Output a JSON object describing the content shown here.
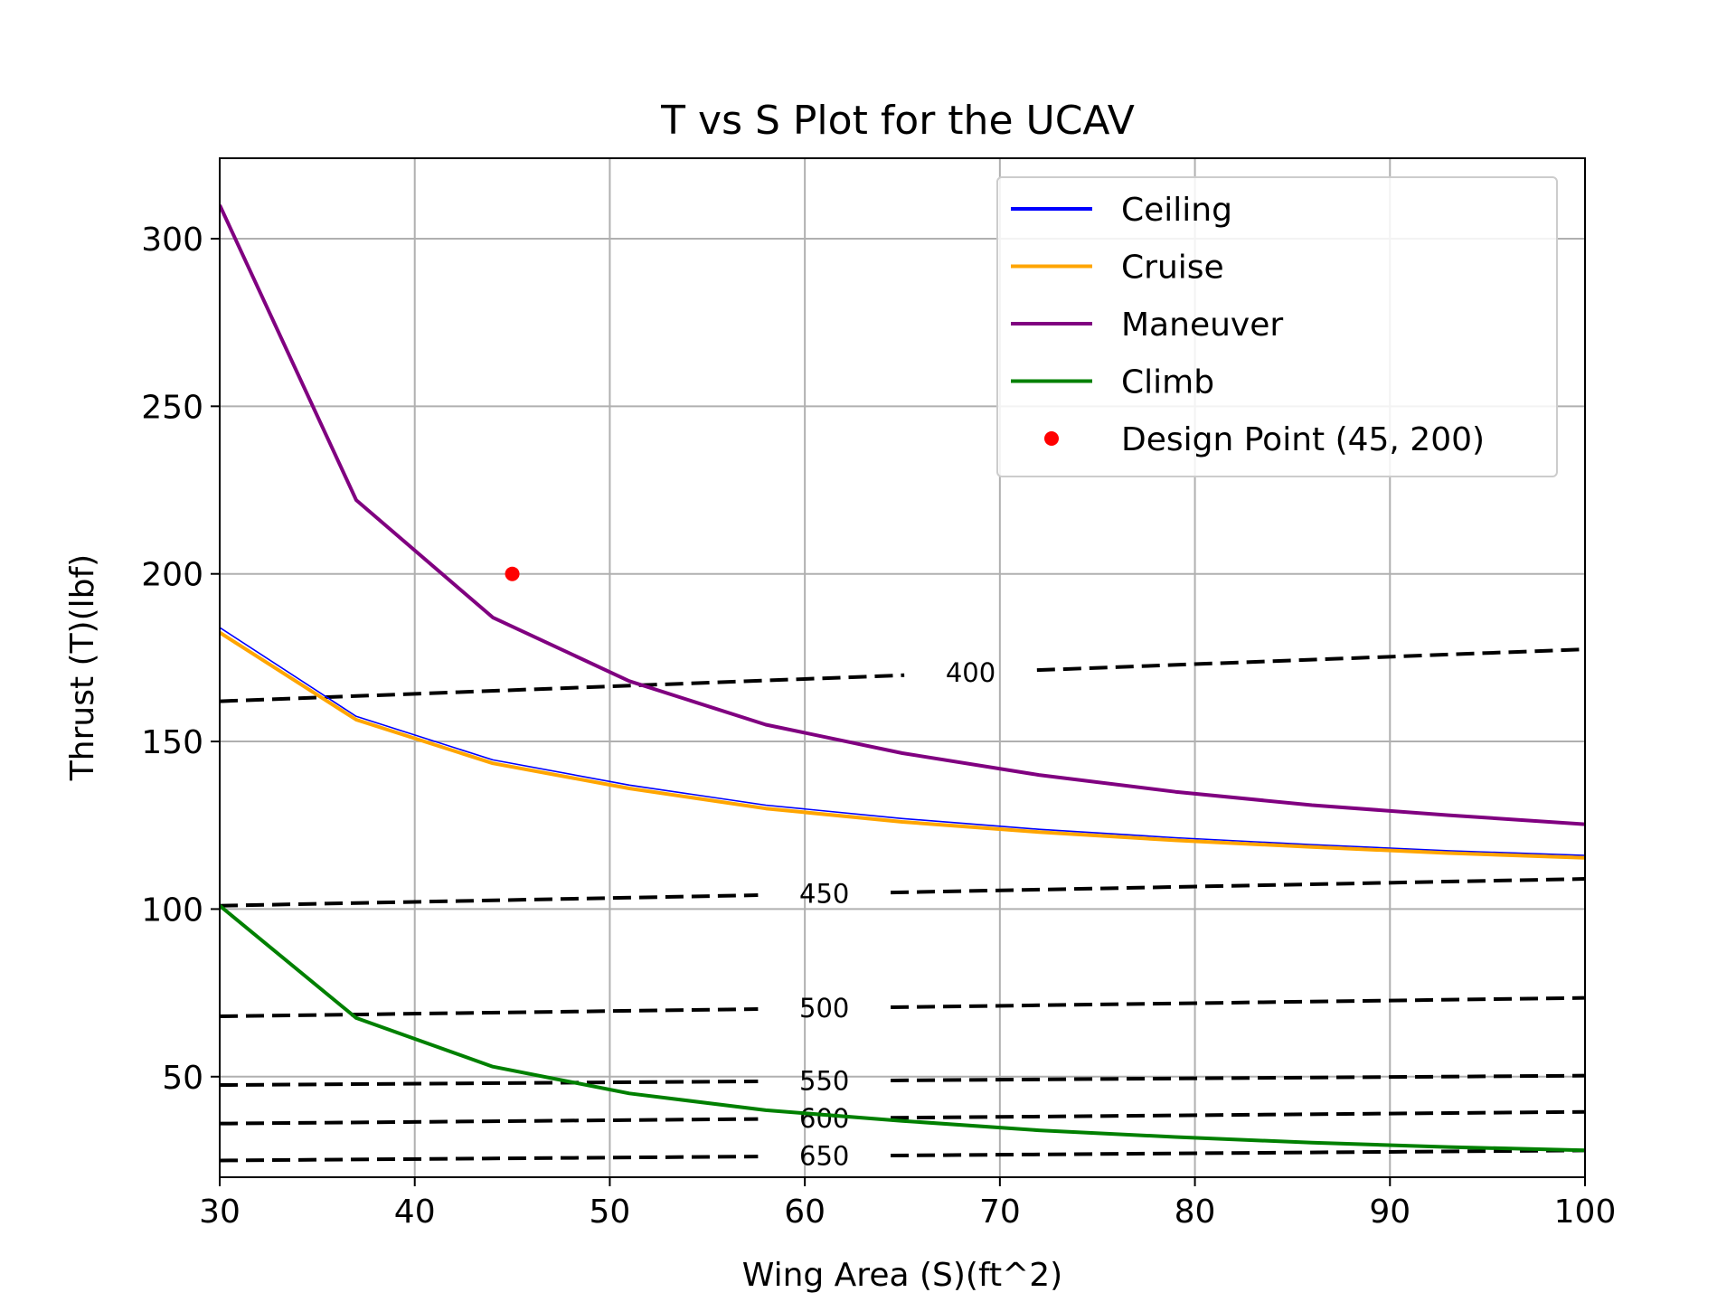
{
  "chart_data": {
    "type": "line",
    "title": "T vs S Plot for the UCAV",
    "xlabel": "Wing Area (S)(ft^2)",
    "ylabel": "Thrust (T)(lbf)",
    "xlim": [
      30,
      100
    ],
    "ylim": [
      20,
      324
    ],
    "xticks": [
      30,
      40,
      50,
      60,
      70,
      80,
      90,
      100
    ],
    "yticks": [
      50,
      100,
      150,
      200,
      250,
      300
    ],
    "grid": true,
    "legend_position": "top-right",
    "series": [
      {
        "name": "Ceiling",
        "color": "#0000ff",
        "width": "thin",
        "x": [
          30,
          37,
          44,
          51,
          58,
          65,
          72,
          79,
          86,
          93,
          100
        ],
        "y": [
          184,
          157.5,
          144.5,
          137,
          131,
          127,
          123.8,
          121.3,
          119.2,
          117.4,
          116
        ]
      },
      {
        "name": "Cruise",
        "color": "#ffa500",
        "width": "thick",
        "x": [
          30,
          37,
          44,
          51,
          58,
          65,
          72,
          79,
          86,
          93,
          100
        ],
        "y": [
          182.5,
          156.5,
          143.5,
          136,
          130,
          126,
          123,
          120.5,
          118.5,
          116.7,
          115.3
        ]
      },
      {
        "name": "Maneuver",
        "color": "#800080",
        "width": "thick",
        "x": [
          30,
          37,
          44,
          51,
          58,
          65,
          72,
          79,
          86,
          93,
          100
        ],
        "y": [
          310,
          222,
          187,
          168,
          155,
          146.5,
          140,
          135,
          131,
          128,
          125.3
        ]
      },
      {
        "name": "Climb",
        "color": "#008000",
        "width": "thick",
        "x": [
          30,
          37,
          44,
          51,
          58,
          65,
          72,
          79,
          86,
          93,
          100
        ],
        "y": [
          101,
          67.5,
          53,
          45,
          40,
          36.8,
          34,
          32,
          30.3,
          29,
          28
        ]
      }
    ],
    "design_point": {
      "name": "Design Point (45, 200)",
      "x": 45,
      "y": 200,
      "color": "#ff0000"
    },
    "contours": [
      {
        "label": "400",
        "y_start": 162,
        "y_end": 177.5,
        "label_x": 68.5
      },
      {
        "label": "450",
        "y_start": 101,
        "y_end": 109,
        "label_x": 61
      },
      {
        "label": "500",
        "y_start": 68,
        "y_end": 73.5,
        "label_x": 61
      },
      {
        "label": "550",
        "y_start": 47.5,
        "y_end": 50.3,
        "label_x": 61
      },
      {
        "label": "600",
        "y_start": 36,
        "y_end": 39.5,
        "label_x": 61
      },
      {
        "label": "650",
        "y_start": 25,
        "y_end": 28,
        "label_x": 61
      }
    ]
  }
}
